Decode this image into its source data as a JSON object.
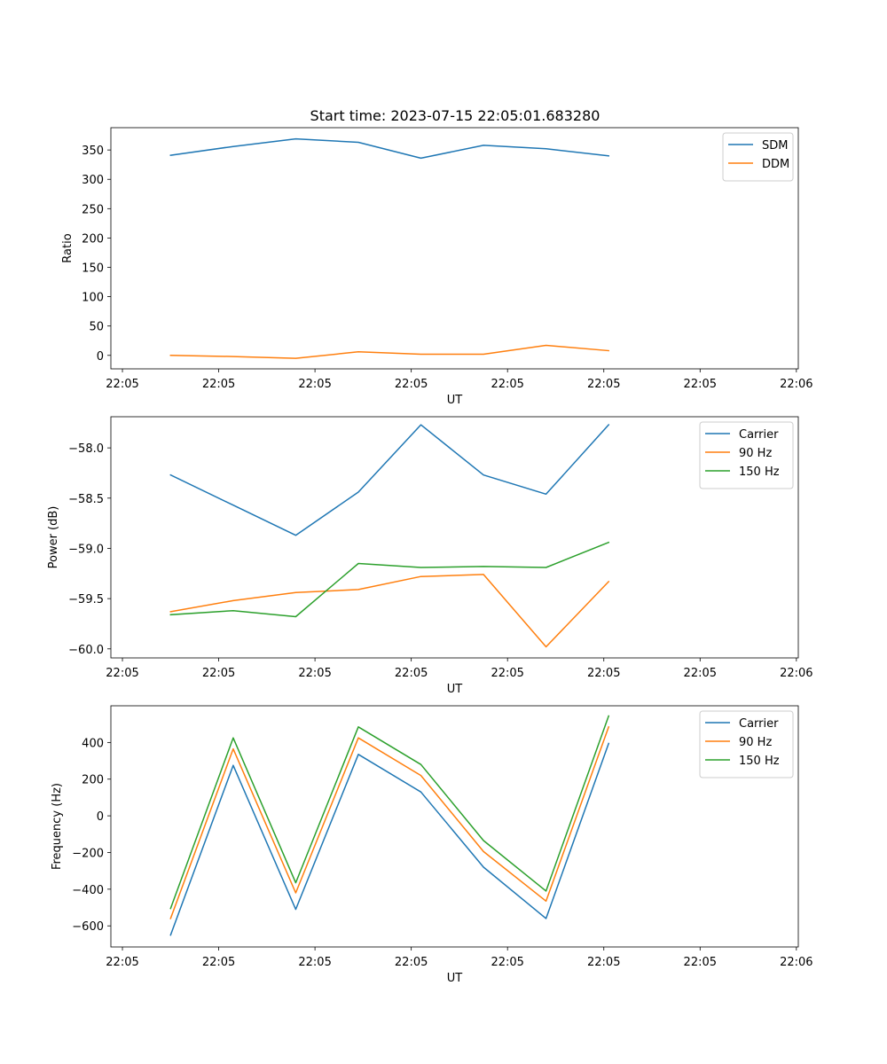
{
  "figure_title": "Start time: 2023-07-15 22:05:01.683280",
  "chart_data": [
    {
      "type": "line",
      "name": "ratio",
      "xlabel": "UT",
      "ylabel": "Ratio",
      "x_tick_labels": [
        "22:05",
        "22:05",
        "22:05",
        "22:05",
        "22:05",
        "22:05",
        "22:05",
        "22:06"
      ],
      "x_tick_offsets_s": [
        0,
        1,
        2,
        3,
        4,
        5,
        6,
        7
      ],
      "xlim": [
        -0.12,
        7.02
      ],
      "x_offsets_s": [
        0.5,
        1.15,
        1.8,
        2.45,
        3.1,
        3.75,
        4.4,
        5.05
      ],
      "y_ticks": [
        0,
        50,
        100,
        150,
        200,
        250,
        300,
        350
      ],
      "ylim": [
        -23,
        388
      ],
      "series": [
        {
          "name": "SDM",
          "color": "#1f77b4",
          "values": [
            341,
            356,
            369,
            363,
            336,
            358,
            352,
            340
          ]
        },
        {
          "name": "DDM",
          "color": "#ff7f0e",
          "values": [
            0,
            -2,
            -5,
            6,
            2,
            2,
            17,
            8
          ]
        }
      ]
    },
    {
      "type": "line",
      "name": "power",
      "xlabel": "UT",
      "ylabel": "Power (dB)",
      "x_tick_labels": [
        "22:05",
        "22:05",
        "22:05",
        "22:05",
        "22:05",
        "22:05",
        "22:05",
        "22:06"
      ],
      "x_tick_offsets_s": [
        0,
        1,
        2,
        3,
        4,
        5,
        6,
        7
      ],
      "xlim": [
        -0.12,
        7.02
      ],
      "x_offsets_s": [
        0.5,
        1.15,
        1.8,
        2.45,
        3.1,
        3.75,
        4.4,
        5.05
      ],
      "y_ticks": [
        -60.0,
        -59.5,
        -59.0,
        -58.5,
        -58.0
      ],
      "ylim": [
        -60.09,
        -57.69
      ],
      "series": [
        {
          "name": "Carrier",
          "color": "#1f77b4",
          "values": [
            -58.27,
            -58.57,
            -58.87,
            -58.44,
            -57.77,
            -58.27,
            -58.46,
            -57.77
          ]
        },
        {
          "name": "90 Hz",
          "color": "#ff7f0e",
          "values": [
            -59.63,
            -59.52,
            -59.44,
            -59.41,
            -59.28,
            -59.26,
            -59.98,
            -59.33
          ]
        },
        {
          "name": "150 Hz",
          "color": "#2ca02c",
          "values": [
            -59.66,
            -59.62,
            -59.68,
            -59.15,
            -59.19,
            -59.18,
            -59.19,
            -58.94
          ]
        }
      ]
    },
    {
      "type": "line",
      "name": "frequency",
      "xlabel": "UT",
      "ylabel": "Frequency (Hz)",
      "x_tick_labels": [
        "22:05",
        "22:05",
        "22:05",
        "22:05",
        "22:05",
        "22:05",
        "22:05",
        "22:06"
      ],
      "x_tick_offsets_s": [
        0,
        1,
        2,
        3,
        4,
        5,
        6,
        7
      ],
      "xlim": [
        -0.12,
        7.02
      ],
      "x_offsets_s": [
        0.5,
        1.15,
        1.8,
        2.45,
        3.1,
        3.75,
        4.4,
        5.05
      ],
      "y_ticks": [
        -600,
        -400,
        -200,
        0,
        200,
        400
      ],
      "ylim": [
        -715,
        600
      ],
      "series": [
        {
          "name": "Carrier",
          "color": "#1f77b4",
          "values": [
            -650,
            275,
            -510,
            335,
            130,
            -280,
            -560,
            395
          ]
        },
        {
          "name": "90 Hz",
          "color": "#ff7f0e",
          "values": [
            -560,
            365,
            -420,
            425,
            220,
            -195,
            -465,
            485
          ]
        },
        {
          "name": "150 Hz",
          "color": "#2ca02c",
          "values": [
            -505,
            425,
            -365,
            485,
            280,
            -135,
            -410,
            545
          ]
        }
      ]
    }
  ]
}
